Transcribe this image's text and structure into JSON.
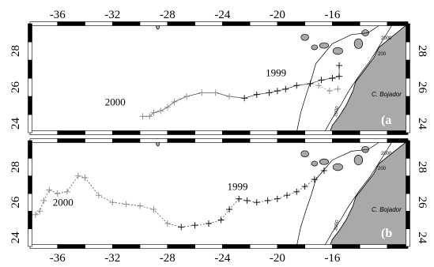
{
  "figure": {
    "lon_ticks": [
      "-36",
      "-32",
      "-28",
      "-24",
      "-20",
      "-16"
    ],
    "lat_ticks": [
      "24",
      "26",
      "28"
    ],
    "colors": {
      "land": "#a9a9a9",
      "track": "#555555",
      "frame": "#000000"
    }
  },
  "chart_data": [
    {
      "type": "scatter",
      "panel_label": "(a",
      "xlim": [
        -38,
        -10.5
      ],
      "ylim": [
        23.5,
        29.5
      ],
      "year_labels": [
        {
          "text": "1999",
          "lon": -20.1,
          "lat": 26.6
        },
        {
          "text": "2000",
          "lon": -31.8,
          "lat": 25.0
        }
      ],
      "cape_label": "C. Bojador",
      "contour_labels": [
        "2000",
        "200",
        "2000"
      ],
      "track": [
        {
          "lon": -15.5,
          "lat": 27.2
        },
        {
          "lon": -15.5,
          "lat": 26.6
        },
        {
          "lon": -16.0,
          "lat": 26.5
        },
        {
          "lon": -16.8,
          "lat": 26.4
        },
        {
          "lon": -17.6,
          "lat": 26.2
        },
        {
          "lon": -18.6,
          "lat": 26.1
        },
        {
          "lon": -19.4,
          "lat": 25.9
        },
        {
          "lon": -20.0,
          "lat": 25.8
        },
        {
          "lon": -20.6,
          "lat": 25.7
        },
        {
          "lon": -21.5,
          "lat": 25.6
        },
        {
          "lon": -22.4,
          "lat": 25.4
        },
        {
          "lon": -23.5,
          "lat": 25.5
        },
        {
          "lon": -24.5,
          "lat": 25.7
        },
        {
          "lon": -25.5,
          "lat": 25.7
        },
        {
          "lon": -26.6,
          "lat": 25.5
        },
        {
          "lon": -27.5,
          "lat": 25.2
        },
        {
          "lon": -28.0,
          "lat": 24.9
        },
        {
          "lon": -28.5,
          "lat": 24.7
        },
        {
          "lon": -29.0,
          "lat": 24.6
        },
        {
          "lon": -29.3,
          "lat": 24.4
        },
        {
          "lon": -29.8,
          "lat": 24.4
        }
      ],
      "track_late": [
        {
          "lon": -15.6,
          "lat": 25.9
        },
        {
          "lon": -16.2,
          "lat": 25.8
        },
        {
          "lon": -17.0,
          "lat": 26.1
        }
      ]
    },
    {
      "type": "scatter",
      "panel_label": "(b",
      "xlim": [
        -38,
        -10.5
      ],
      "ylim": [
        23.5,
        29.5
      ],
      "year_labels": [
        {
          "text": "1999",
          "lon": -22.9,
          "lat": 26.7
        },
        {
          "text": "2000",
          "lon": -35.6,
          "lat": 25.8
        }
      ],
      "cape_label": "C. Bojador",
      "contour_labels": [
        "2000",
        "200",
        "2000"
      ],
      "track": [
        {
          "lon": -16.6,
          "lat": 27.8
        },
        {
          "lon": -17.3,
          "lat": 27.3
        },
        {
          "lon": -18.0,
          "lat": 26.9
        },
        {
          "lon": -18.6,
          "lat": 26.6
        },
        {
          "lon": -19.3,
          "lat": 26.4
        },
        {
          "lon": -20.0,
          "lat": 26.2
        },
        {
          "lon": -20.7,
          "lat": 26.1
        },
        {
          "lon": -21.5,
          "lat": 26.0
        },
        {
          "lon": -22.2,
          "lat": 26.1
        },
        {
          "lon": -22.8,
          "lat": 26.2
        },
        {
          "lon": -23.5,
          "lat": 25.6
        },
        {
          "lon": -24.1,
          "lat": 25.0
        },
        {
          "lon": -25.0,
          "lat": 24.8
        },
        {
          "lon": -26.0,
          "lat": 24.7
        },
        {
          "lon": -27.0,
          "lat": 24.6
        },
        {
          "lon": -28.0,
          "lat": 24.8
        },
        {
          "lon": -29.0,
          "lat": 25.6
        },
        {
          "lon": -30.0,
          "lat": 25.8
        },
        {
          "lon": -31.0,
          "lat": 25.9
        },
        {
          "lon": -32.0,
          "lat": 26.0
        },
        {
          "lon": -33.0,
          "lat": 26.4
        },
        {
          "lon": -34.0,
          "lat": 27.4
        },
        {
          "lon": -34.5,
          "lat": 27.5
        },
        {
          "lon": -35.3,
          "lat": 26.6
        },
        {
          "lon": -36.0,
          "lat": 26.5
        },
        {
          "lon": -36.6,
          "lat": 26.7
        },
        {
          "lon": -37.0,
          "lat": 26.1
        },
        {
          "lon": -37.3,
          "lat": 25.5
        },
        {
          "lon": -37.6,
          "lat": 25.3
        }
      ],
      "track_late": []
    }
  ]
}
